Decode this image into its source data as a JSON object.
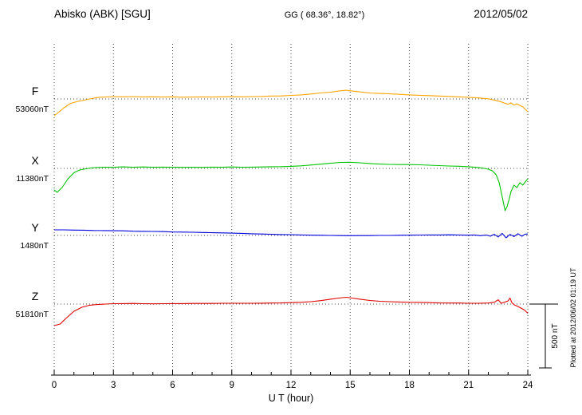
{
  "header": {
    "station": "Abisko (ABK)  [SGU]",
    "coordinates": "GG ( 68.36°,  18.82°)",
    "date": "2012/05/02"
  },
  "axis": {
    "xlabel": "U T (hour)",
    "x_min": 0,
    "x_max": 24,
    "major_ticks": [
      0,
      3,
      6,
      9,
      12,
      15,
      18,
      21,
      24
    ],
    "minor_tick_step_hours": 1
  },
  "scalebar": {
    "label": "500 nT",
    "value_nT": 500
  },
  "plot_note": "Plotted at 2012/06/02 01:19 UT",
  "chart_data": {
    "type": "line",
    "title": "Abisko (ABK) [SGU] magnetogram 2012/05/02",
    "xlabel": "U T (hour)",
    "x_range": [
      0,
      24
    ],
    "x_unit": "hour UT",
    "grid": "dotted vertical lines every 3 hours; dotted horizontal baseline per component",
    "scale_bar_nT": 500,
    "series": [
      {
        "name": "F",
        "color": "#FFA300",
        "baseline_label": "53060nT",
        "baseline_nT": 53060,
        "points": [
          [
            0,
            -131
          ],
          [
            0.2,
            -106
          ],
          [
            0.5,
            -69
          ],
          [
            0.8,
            -37
          ],
          [
            1.2,
            -19
          ],
          [
            1.7,
            -3
          ],
          [
            2.2,
            12
          ],
          [
            3,
            19
          ],
          [
            3.5,
            17
          ],
          [
            4,
            19
          ],
          [
            4.5,
            16
          ],
          [
            5,
            17
          ],
          [
            5.5,
            15
          ],
          [
            6,
            17
          ],
          [
            6.5,
            14
          ],
          [
            7,
            15
          ],
          [
            7.5,
            16
          ],
          [
            8,
            15
          ],
          [
            8.5,
            17
          ],
          [
            9,
            18
          ],
          [
            9.5,
            17
          ],
          [
            10,
            19
          ],
          [
            10.5,
            20
          ],
          [
            11,
            23
          ],
          [
            11.5,
            24
          ],
          [
            12,
            28
          ],
          [
            12.5,
            32
          ],
          [
            13,
            39
          ],
          [
            13.5,
            47
          ],
          [
            14,
            53
          ],
          [
            14.5,
            64
          ],
          [
            14.8,
            68
          ],
          [
            15.1,
            62
          ],
          [
            15.5,
            55
          ],
          [
            16,
            47
          ],
          [
            16.5,
            43
          ],
          [
            17,
            40
          ],
          [
            17.5,
            36
          ],
          [
            18,
            32
          ],
          [
            18.5,
            29
          ],
          [
            19,
            26
          ],
          [
            19.5,
            23
          ],
          [
            20,
            20
          ],
          [
            20.5,
            17
          ],
          [
            21,
            13
          ],
          [
            21.5,
            8
          ],
          [
            22,
            1
          ],
          [
            22.3,
            -8
          ],
          [
            22.6,
            -20
          ],
          [
            22.8,
            -31
          ],
          [
            23,
            -42
          ],
          [
            23.15,
            -30
          ],
          [
            23.3,
            -49
          ],
          [
            23.45,
            -38
          ],
          [
            23.6,
            -52
          ],
          [
            23.75,
            -62
          ],
          [
            23.9,
            -85
          ],
          [
            24,
            -100
          ]
        ]
      },
      {
        "name": "X",
        "color": "#00C400",
        "baseline_label": "11380nT",
        "baseline_nT": 11380,
        "points": [
          [
            0,
            -169
          ],
          [
            0.15,
            -187
          ],
          [
            0.4,
            -150
          ],
          [
            0.7,
            -81
          ],
          [
            1,
            -34
          ],
          [
            1.3,
            -12
          ],
          [
            1.6,
            -3
          ],
          [
            2,
            6
          ],
          [
            2.5,
            9
          ],
          [
            3,
            9
          ],
          [
            3.5,
            12
          ],
          [
            4,
            9
          ],
          [
            4.5,
            11
          ],
          [
            5,
            9
          ],
          [
            5.5,
            10
          ],
          [
            6,
            9
          ],
          [
            6.5,
            8
          ],
          [
            7,
            9
          ],
          [
            7.5,
            8
          ],
          [
            8,
            10
          ],
          [
            8.5,
            9
          ],
          [
            9,
            11
          ],
          [
            9.5,
            9
          ],
          [
            10,
            10
          ],
          [
            10.5,
            11
          ],
          [
            11,
            13
          ],
          [
            11.5,
            14
          ],
          [
            12,
            16
          ],
          [
            12.5,
            20
          ],
          [
            13,
            26
          ],
          [
            13.5,
            33
          ],
          [
            14,
            40
          ],
          [
            14.5,
            47
          ],
          [
            15,
            48
          ],
          [
            15.5,
            44
          ],
          [
            16,
            38
          ],
          [
            16.5,
            34
          ],
          [
            17,
            31
          ],
          [
            17.5,
            30
          ],
          [
            18,
            30
          ],
          [
            18.5,
            28
          ],
          [
            19,
            25
          ],
          [
            19.5,
            22
          ],
          [
            20,
            19
          ],
          [
            20.5,
            17
          ],
          [
            21,
            13
          ],
          [
            21.4,
            8
          ],
          [
            21.7,
            3
          ],
          [
            22,
            -6
          ],
          [
            22.2,
            -19
          ],
          [
            22.4,
            -50
          ],
          [
            22.55,
            -112
          ],
          [
            22.7,
            -219
          ],
          [
            22.85,
            -331
          ],
          [
            22.95,
            -300
          ],
          [
            23.05,
            -244
          ],
          [
            23.15,
            -181
          ],
          [
            23.3,
            -131
          ],
          [
            23.45,
            -150
          ],
          [
            23.6,
            -112
          ],
          [
            23.75,
            -131
          ],
          [
            23.9,
            -100
          ],
          [
            24,
            -81
          ]
        ]
      },
      {
        "name": "Y",
        "color": "#0000E0",
        "baseline_label": "1480nT",
        "baseline_nT": 1480,
        "points": [
          [
            0,
            44
          ],
          [
            0.5,
            44
          ],
          [
            1,
            42
          ],
          [
            1.5,
            41
          ],
          [
            2,
            39
          ],
          [
            2.5,
            38
          ],
          [
            3,
            37
          ],
          [
            3.5,
            36
          ],
          [
            4,
            33
          ],
          [
            4.5,
            32
          ],
          [
            5,
            31
          ],
          [
            5.5,
            30
          ],
          [
            6,
            27
          ],
          [
            6.5,
            26
          ],
          [
            7,
            25
          ],
          [
            7.5,
            23
          ],
          [
            8,
            21
          ],
          [
            8.5,
            20
          ],
          [
            9,
            18
          ],
          [
            9.5,
            16
          ],
          [
            10,
            13
          ],
          [
            10.5,
            11
          ],
          [
            11,
            9
          ],
          [
            11.5,
            7
          ],
          [
            12,
            6
          ],
          [
            12.5,
            4
          ],
          [
            13,
            2
          ],
          [
            13.5,
            1
          ],
          [
            14,
            0
          ],
          [
            14.5,
            -1
          ],
          [
            15,
            -2
          ],
          [
            15.5,
            -1
          ],
          [
            16,
            -1
          ],
          [
            16.5,
            0
          ],
          [
            17,
            0
          ],
          [
            17.5,
            1
          ],
          [
            18,
            2
          ],
          [
            18.5,
            3
          ],
          [
            19,
            4
          ],
          [
            19.5,
            4
          ],
          [
            20,
            5
          ],
          [
            20.5,
            4
          ],
          [
            21,
            2
          ],
          [
            21.3,
            4
          ],
          [
            21.6,
            -2
          ],
          [
            21.9,
            3
          ],
          [
            22.1,
            -6
          ],
          [
            22.3,
            9
          ],
          [
            22.5,
            -12
          ],
          [
            22.7,
            16
          ],
          [
            22.9,
            -19
          ],
          [
            23.1,
            8
          ],
          [
            23.3,
            -9
          ],
          [
            23.5,
            14
          ],
          [
            23.7,
            -6
          ],
          [
            23.85,
            9
          ],
          [
            24,
            12
          ]
        ]
      },
      {
        "name": "Z",
        "color": "#E00000",
        "baseline_label": "51810nT",
        "baseline_nT": 51810,
        "points": [
          [
            0,
            -169
          ],
          [
            0.3,
            -156
          ],
          [
            0.6,
            -112
          ],
          [
            1,
            -56
          ],
          [
            1.4,
            -25
          ],
          [
            1.8,
            -9
          ],
          [
            2.2,
            -3
          ],
          [
            2.6,
            0
          ],
          [
            3,
            3
          ],
          [
            3.5,
            4
          ],
          [
            4,
            5
          ],
          [
            4.5,
            3
          ],
          [
            5,
            2
          ],
          [
            5.5,
            3
          ],
          [
            6,
            4
          ],
          [
            6.5,
            4
          ],
          [
            7,
            5
          ],
          [
            7.5,
            5
          ],
          [
            8,
            5
          ],
          [
            8.5,
            6
          ],
          [
            9,
            6
          ],
          [
            9.5,
            6
          ],
          [
            10,
            6
          ],
          [
            10.5,
            7
          ],
          [
            11,
            8
          ],
          [
            11.5,
            9
          ],
          [
            12,
            11
          ],
          [
            12.5,
            14
          ],
          [
            13,
            19
          ],
          [
            13.5,
            27
          ],
          [
            14,
            38
          ],
          [
            14.4,
            47
          ],
          [
            14.8,
            53
          ],
          [
            15.1,
            47
          ],
          [
            15.5,
            38
          ],
          [
            16,
            28
          ],
          [
            16.5,
            22
          ],
          [
            17,
            19
          ],
          [
            17.5,
            16
          ],
          [
            18,
            14
          ],
          [
            18.5,
            13
          ],
          [
            19,
            11
          ],
          [
            19.5,
            9
          ],
          [
            20,
            8
          ],
          [
            20.5,
            8
          ],
          [
            21,
            6
          ],
          [
            21.5,
            6
          ],
          [
            22,
            8
          ],
          [
            22.3,
            14
          ],
          [
            22.5,
            34
          ],
          [
            22.65,
            6
          ],
          [
            22.8,
            13
          ],
          [
            23,
            25
          ],
          [
            23.1,
            47
          ],
          [
            23.2,
            9
          ],
          [
            23.35,
            -9
          ],
          [
            23.5,
            -19
          ],
          [
            23.65,
            -31
          ],
          [
            23.8,
            -44
          ],
          [
            23.9,
            -56
          ],
          [
            24,
            -72
          ]
        ]
      }
    ]
  }
}
